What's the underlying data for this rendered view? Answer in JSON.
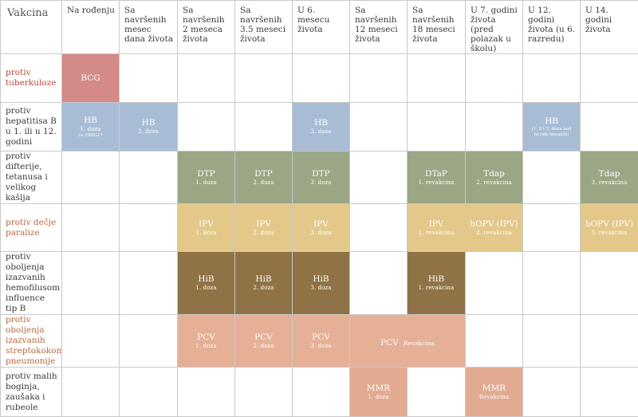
{
  "headers": [
    "Vakcina",
    "Na rođenju",
    "Sa navršenih mesec dana života",
    "Sa navršenih 2 meseca života",
    "Sa navršenih 3.5 meseci života",
    "U 6. mesecu života",
    "Sa navršenih 12 meseci života",
    "Sa navršenih 18 meseci života",
    "U 7. godini života (pred polazak u školu)",
    "U 12. godini života (u 6. razredu)",
    "U 14. godini života"
  ],
  "vaccines": {
    "tb": "protiv tuberkuloze",
    "hep": "protiv hepatitisa B u 1. ili u 12. godini",
    "dtp": "protiv difterije, tetanusa i velikog kašlja",
    "polio": "protiv dečje paralize",
    "hib": "protiv oboljenja izazvanih hemofilusom influence tip B",
    "pneumo": "protiv oboljenja izazvanih streptokokom pneumonije",
    "mmr": "protiv malih boginja, zaušaka i rubeole"
  },
  "cells": {
    "bcg": {
      "name": "BCG"
    },
    "hb1": {
      "name": "HB",
      "dose": "1. doza",
      "note": "(+ HBIG) *"
    },
    "hb2": {
      "name": "HB",
      "dose": "2. doza"
    },
    "hb3": {
      "name": "HB",
      "dose": "3. doza"
    },
    "hb12": {
      "name": "HB",
      "dose": "(1, 2 i 3. doza kod nevakcinisanih)"
    },
    "dtp1": {
      "name": "DTP",
      "dose": "1. doza"
    },
    "dtp2": {
      "name": "DTP",
      "dose": "2. doza"
    },
    "dtp3": {
      "name": "DTP",
      "dose": "3. doza"
    },
    "dtap": {
      "name": "DTaP",
      "dose": "1. revakcina"
    },
    "tdap7": {
      "name": "Tdap",
      "dose": "2. revakcina"
    },
    "tdap14": {
      "name": "Tdap",
      "dose": "3. revakcina"
    },
    "ipv1": {
      "name": "IPV",
      "dose": "1. doza"
    },
    "ipv2": {
      "name": "IPV",
      "dose": "2. doza"
    },
    "ipv3": {
      "name": "IPV",
      "dose": "3. doza"
    },
    "ipv18": {
      "name": "IPV",
      "dose": "1. revakcina"
    },
    "bopv7": {
      "name": "bOPV (IPV)",
      "dose": "2. revakcina"
    },
    "bopv14": {
      "name": "bOPV (IPV)",
      "dose": "3. revakcina"
    },
    "hib1": {
      "name": "HiB",
      "dose": "1. doza"
    },
    "hib2": {
      "name": "HiB",
      "dose": "2. doza"
    },
    "hib3": {
      "name": "HiB",
      "dose": "3. doza"
    },
    "hib18": {
      "name": "HiB",
      "dose": "1. revakcina"
    },
    "pcv1": {
      "name": "PCV",
      "dose": "1. doza"
    },
    "pcv2": {
      "name": "PCV",
      "dose": "2. doza"
    },
    "pcv3": {
      "name": "PCV",
      "dose": "3. doza"
    },
    "pcvr": {
      "name": "PCV",
      "dose": "Revakcina"
    },
    "mmr1": {
      "name": "MMR",
      "dose": "1. doza"
    },
    "mmr2": {
      "name": "MMR",
      "dose": "Revakcina"
    }
  },
  "colors": {
    "bcg": "#d48a86",
    "hb": "#a9bcd6",
    "dtp": "#9aa684",
    "ipv": "#e3c88a",
    "hib": "#8f7245",
    "pcv": "#e5b095",
    "vaccine_text_red": "#b8473b",
    "vaccine_text_orange": "#b86a3d"
  }
}
